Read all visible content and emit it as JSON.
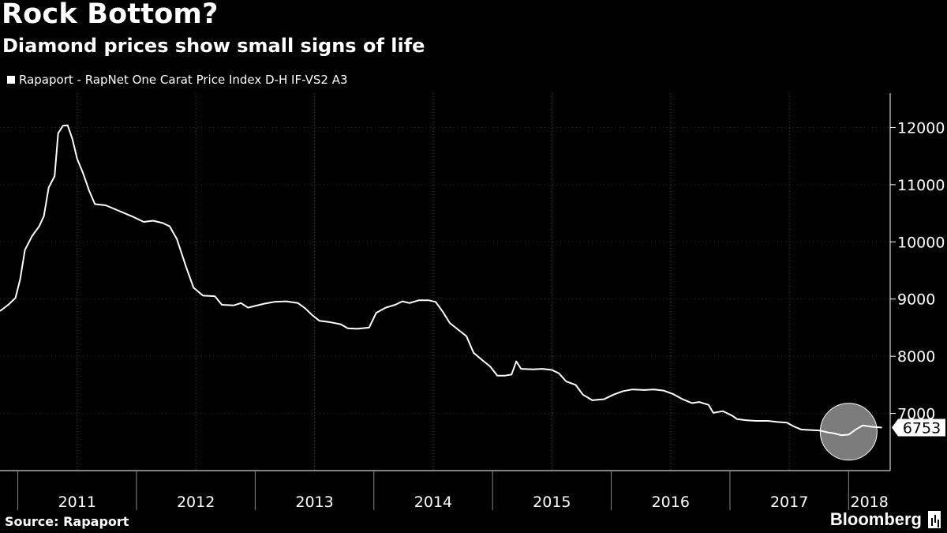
{
  "header": {
    "title": "Rock Bottom?",
    "subtitle": "Diamond prices show small signs of life"
  },
  "legend": {
    "label": "Rapaport - RapNet One Carat Price Index D-H IF-VS2 A3"
  },
  "footer": {
    "source": "Source: Rapaport",
    "brand": "Bloomberg"
  },
  "colors": {
    "background": "#000000",
    "line": "#ffffff",
    "grid": "#555555",
    "highlight": "#8a8a8a"
  },
  "chart_data": {
    "type": "line",
    "title": "Rock Bottom?",
    "subtitle": "Diamond prices show small signs of life",
    "series": [
      {
        "name": "Rapaport - RapNet One Carat Price Index D-H IF-VS2 A3",
        "points": [
          [
            2010.85,
            8790
          ],
          [
            2010.92,
            8900
          ],
          [
            2010.98,
            9020
          ],
          [
            2011.02,
            9350
          ],
          [
            2011.06,
            9860
          ],
          [
            2011.12,
            10100
          ],
          [
            2011.18,
            10270
          ],
          [
            2011.22,
            10450
          ],
          [
            2011.26,
            10950
          ],
          [
            2011.31,
            11150
          ],
          [
            2011.34,
            11900
          ],
          [
            2011.38,
            12030
          ],
          [
            2011.42,
            12040
          ],
          [
            2011.46,
            11800
          ],
          [
            2011.5,
            11450
          ],
          [
            2011.55,
            11200
          ],
          [
            2011.6,
            10900
          ],
          [
            2011.65,
            10660
          ],
          [
            2011.74,
            10640
          ],
          [
            2011.82,
            10570
          ],
          [
            2011.9,
            10500
          ],
          [
            2011.98,
            10430
          ],
          [
            2012.06,
            10350
          ],
          [
            2012.14,
            10370
          ],
          [
            2012.22,
            10330
          ],
          [
            2012.28,
            10270
          ],
          [
            2012.34,
            10050
          ],
          [
            2012.42,
            9550
          ],
          [
            2012.48,
            9200
          ],
          [
            2012.56,
            9060
          ],
          [
            2012.66,
            9050
          ],
          [
            2012.72,
            8900
          ],
          [
            2012.82,
            8890
          ],
          [
            2012.88,
            8930
          ],
          [
            2012.94,
            8850
          ],
          [
            2013.0,
            8880
          ],
          [
            2013.08,
            8920
          ],
          [
            2013.16,
            8950
          ],
          [
            2013.26,
            8960
          ],
          [
            2013.36,
            8930
          ],
          [
            2013.42,
            8840
          ],
          [
            2013.48,
            8720
          ],
          [
            2013.54,
            8620
          ],
          [
            2013.62,
            8600
          ],
          [
            2013.72,
            8560
          ],
          [
            2013.78,
            8490
          ],
          [
            2013.86,
            8480
          ],
          [
            2013.96,
            8500
          ],
          [
            2014.02,
            8760
          ],
          [
            2014.1,
            8850
          ],
          [
            2014.18,
            8900
          ],
          [
            2014.24,
            8960
          ],
          [
            2014.3,
            8930
          ],
          [
            2014.38,
            8980
          ],
          [
            2014.46,
            8980
          ],
          [
            2014.52,
            8950
          ],
          [
            2014.58,
            8780
          ],
          [
            2014.64,
            8580
          ],
          [
            2014.72,
            8450
          ],
          [
            2014.78,
            8350
          ],
          [
            2014.84,
            8060
          ],
          [
            2014.92,
            7920
          ],
          [
            2014.98,
            7820
          ],
          [
            2015.04,
            7660
          ],
          [
            2015.1,
            7660
          ],
          [
            2015.16,
            7680
          ],
          [
            2015.2,
            7910
          ],
          [
            2015.24,
            7780
          ],
          [
            2015.34,
            7770
          ],
          [
            2015.42,
            7780
          ],
          [
            2015.5,
            7760
          ],
          [
            2015.56,
            7700
          ],
          [
            2015.62,
            7560
          ],
          [
            2015.7,
            7500
          ],
          [
            2015.76,
            7330
          ],
          [
            2015.84,
            7230
          ],
          [
            2015.94,
            7250
          ],
          [
            2016.02,
            7330
          ],
          [
            2016.1,
            7390
          ],
          [
            2016.18,
            7420
          ],
          [
            2016.28,
            7410
          ],
          [
            2016.36,
            7420
          ],
          [
            2016.44,
            7400
          ],
          [
            2016.52,
            7340
          ],
          [
            2016.6,
            7250
          ],
          [
            2016.68,
            7180
          ],
          [
            2016.74,
            7200
          ],
          [
            2016.82,
            7150
          ],
          [
            2016.86,
            7010
          ],
          [
            2016.94,
            7040
          ],
          [
            2017.02,
            6960
          ],
          [
            2017.06,
            6900
          ],
          [
            2017.14,
            6880
          ],
          [
            2017.22,
            6870
          ],
          [
            2017.32,
            6870
          ],
          [
            2017.4,
            6850
          ],
          [
            2017.48,
            6840
          ],
          [
            2017.54,
            6770
          ],
          [
            2017.6,
            6720
          ],
          [
            2017.68,
            6710
          ],
          [
            2017.76,
            6700
          ],
          [
            2017.82,
            6670
          ],
          [
            2017.88,
            6650
          ],
          [
            2017.94,
            6620
          ],
          [
            2018.0,
            6630
          ],
          [
            2018.06,
            6720
          ],
          [
            2018.12,
            6790
          ],
          [
            2018.18,
            6770
          ],
          [
            2018.24,
            6760
          ],
          [
            2018.28,
            6753
          ]
        ]
      }
    ],
    "x_range": [
      2010.85,
      2018.35
    ],
    "y_range": [
      6000,
      12600
    ],
    "x_ticks": [
      2011,
      2012,
      2013,
      2014,
      2015,
      2016,
      2017,
      2018
    ],
    "x_tick_labels": [
      "2011",
      "2012",
      "2013",
      "2014",
      "2015",
      "2016",
      "2017",
      "2018"
    ],
    "y_ticks": [
      7000,
      8000,
      9000,
      10000,
      11000,
      12000
    ],
    "y_tick_labels": [
      "7000",
      "8000",
      "9000",
      "10000",
      "11000",
      "12000"
    ],
    "last_value_label": "6753",
    "highlight_circle": {
      "center_x": 2018.0,
      "center_y": 6680,
      "note": "recent uptick highlighted"
    },
    "xlabel": "",
    "ylabel": "",
    "grid": "vertical dotted at year boundaries",
    "legend_position": "top-left",
    "y_axis_side": "right"
  }
}
